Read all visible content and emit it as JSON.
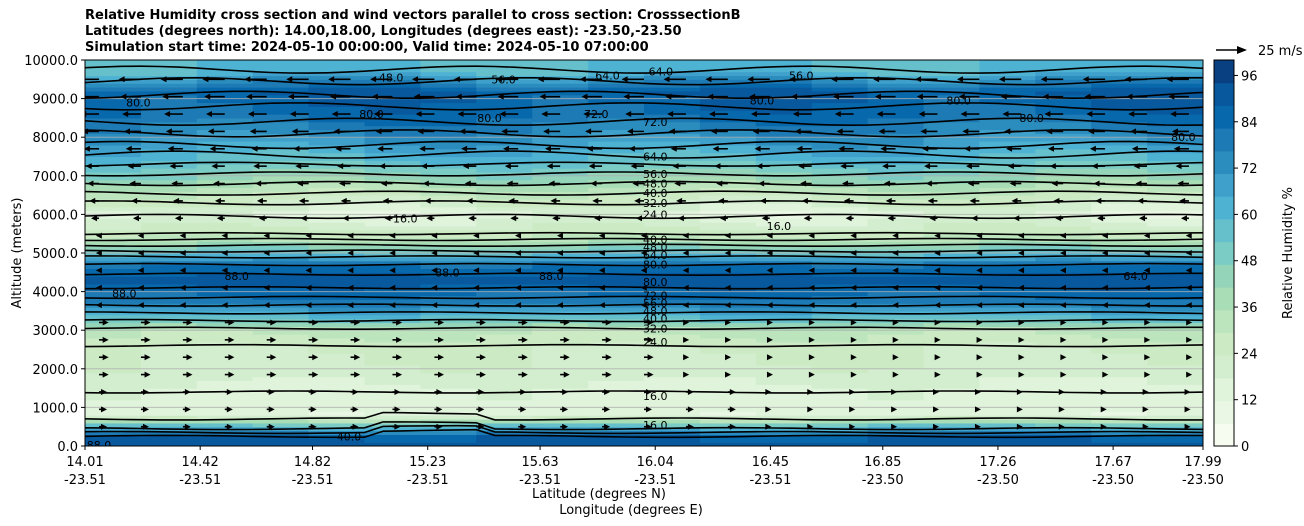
{
  "title_lines": [
    "Relative Humidity cross section and wind vectors parallel to cross section: CrosssectionB",
    "Latitudes (degrees north): 14.00,18.00, Longitudes (degrees east): -23.50,-23.50",
    "Simulation start time: 2024-05-10 00:00:00, Valid time: 2024-05-10 07:00:00"
  ],
  "wind_key_label": "25 m/s",
  "colorbar_label": "Relative Humidity %",
  "chart_data": {
    "type": "heatmap",
    "ylabel": "Altitude (meters)",
    "xlabel_line1": "Latitude (degrees N)",
    "xlabel_line2": "Longitude (degrees E)",
    "ylim": [
      0,
      10000
    ],
    "yticks": [
      "0.0",
      "1000.0",
      "2000.0",
      "3000.0",
      "4000.0",
      "5000.0",
      "6000.0",
      "7000.0",
      "8000.0",
      "9000.0",
      "10000.0"
    ],
    "xticks": [
      {
        "lat": "14.01",
        "lon": "-23.51"
      },
      {
        "lat": "14.42",
        "lon": "-23.51"
      },
      {
        "lat": "14.82",
        "lon": "-23.51"
      },
      {
        "lat": "15.23",
        "lon": "-23.51"
      },
      {
        "lat": "15.63",
        "lon": "-23.51"
      },
      {
        "lat": "16.04",
        "lon": "-23.51"
      },
      {
        "lat": "16.45",
        "lon": "-23.51"
      },
      {
        "lat": "16.85",
        "lon": "-23.50"
      },
      {
        "lat": "17.26",
        "lon": "-23.50"
      },
      {
        "lat": "17.67",
        "lon": "-23.50"
      },
      {
        "lat": "17.99",
        "lon": "-23.50"
      }
    ],
    "colorbar": {
      "range": [
        0,
        100
      ],
      "ticks": [
        "0",
        "12",
        "24",
        "36",
        "48",
        "60",
        "72",
        "84",
        "96"
      ],
      "colors": [
        "#f7fcf0",
        "#eaf7e4",
        "#e0f3db",
        "#d3eece",
        "#ccebc5",
        "#bce5be",
        "#a8ddb5",
        "#94d4b9",
        "#7bccc4",
        "#66c0cb",
        "#4eb3d3",
        "#3fa1cb",
        "#2b8cbe",
        "#1d7ab4",
        "#0868ac",
        "#08589e",
        "#084081"
      ]
    },
    "rh_profile": [
      {
        "alt": 0,
        "rh": 92
      },
      {
        "alt": 250,
        "rh": 88
      },
      {
        "alt": 500,
        "rh": 60
      },
      {
        "alt": 800,
        "rh": 14
      },
      {
        "alt": 1500,
        "rh": 16
      },
      {
        "alt": 2000,
        "rh": 22
      },
      {
        "alt": 2600,
        "rh": 25
      },
      {
        "alt": 3000,
        "rh": 32
      },
      {
        "alt": 3300,
        "rh": 55
      },
      {
        "alt": 3700,
        "rh": 78
      },
      {
        "alt": 4300,
        "rh": 92
      },
      {
        "alt": 4700,
        "rh": 82
      },
      {
        "alt": 5000,
        "rh": 55
      },
      {
        "alt": 5400,
        "rh": 30
      },
      {
        "alt": 6000,
        "rh": 14
      },
      {
        "alt": 6500,
        "rh": 28
      },
      {
        "alt": 7000,
        "rh": 45
      },
      {
        "alt": 7500,
        "rh": 60
      },
      {
        "alt": 8000,
        "rh": 72
      },
      {
        "alt": 8600,
        "rh": 84
      },
      {
        "alt": 9200,
        "rh": 88
      },
      {
        "alt": 9700,
        "rh": 60
      },
      {
        "alt": 10000,
        "rh": 58
      }
    ],
    "contour_labels": [
      {
        "label": "16.0",
        "lat": 16.04,
        "alt": 1300
      },
      {
        "label": "24.0",
        "lat": 16.04,
        "alt": 2700
      },
      {
        "label": "32.0",
        "lat": 16.04,
        "alt": 3050
      },
      {
        "label": "40.0",
        "lat": 16.04,
        "alt": 3300
      },
      {
        "label": "48.0",
        "lat": 16.04,
        "alt": 3500
      },
      {
        "label": "56.0",
        "lat": 16.04,
        "alt": 3700
      },
      {
        "label": "72.0",
        "lat": 16.04,
        "alt": 3900
      },
      {
        "label": "80.0",
        "lat": 16.04,
        "alt": 4250
      },
      {
        "label": "80.0",
        "lat": 16.04,
        "alt": 4700
      },
      {
        "label": "64.0",
        "lat": 16.04,
        "alt": 4950
      },
      {
        "label": "48.0",
        "lat": 16.04,
        "alt": 5150
      },
      {
        "label": "40.0",
        "lat": 16.04,
        "alt": 5350
      },
      {
        "label": "24.0",
        "lat": 16.04,
        "alt": 6000
      },
      {
        "label": "32.0",
        "lat": 16.04,
        "alt": 6300
      },
      {
        "label": "40.0",
        "lat": 16.04,
        "alt": 6550
      },
      {
        "label": "48.0",
        "lat": 16.04,
        "alt": 6800
      },
      {
        "label": "56.0",
        "lat": 16.04,
        "alt": 7050
      },
      {
        "label": "64.0",
        "lat": 16.04,
        "alt": 7500
      },
      {
        "label": "72.0",
        "lat": 16.04,
        "alt": 8400
      },
      {
        "label": "88.0",
        "lat": 14.55,
        "alt": 4400
      },
      {
        "label": "88.0",
        "lat": 15.3,
        "alt": 4500
      },
      {
        "label": "88.0",
        "lat": 15.67,
        "alt": 4400
      },
      {
        "label": "88.0",
        "lat": 14.15,
        "alt": 3950
      },
      {
        "label": "64.0",
        "lat": 17.75,
        "alt": 4400
      },
      {
        "label": "16.0",
        "lat": 15.15,
        "alt": 5900
      },
      {
        "label": "16.0",
        "lat": 16.48,
        "alt": 5700
      },
      {
        "label": "80.0",
        "lat": 14.2,
        "alt": 8900
      },
      {
        "label": "80.0",
        "lat": 15.03,
        "alt": 8600
      },
      {
        "label": "80.0",
        "lat": 15.45,
        "alt": 8500
      },
      {
        "label": "72.0",
        "lat": 15.83,
        "alt": 8600
      },
      {
        "label": "80.0",
        "lat": 16.42,
        "alt": 8950
      },
      {
        "label": "80.0",
        "lat": 17.12,
        "alt": 8950
      },
      {
        "label": "80.0",
        "lat": 17.38,
        "alt": 8500
      },
      {
        "label": "80.0",
        "lat": 17.92,
        "alt": 8000
      },
      {
        "label": "64.0",
        "lat": 16.06,
        "alt": 9700
      },
      {
        "label": "56.0",
        "lat": 16.56,
        "alt": 9600
      },
      {
        "label": "48.0",
        "lat": 15.1,
        "alt": 9550
      },
      {
        "label": "56.0",
        "lat": 15.5,
        "alt": 9500
      },
      {
        "label": "64.0",
        "lat": 15.87,
        "alt": 9600
      },
      {
        "label": "88.0",
        "lat": 14.06,
        "alt": 20
      },
      {
        "label": "40.0",
        "lat": 14.95,
        "alt": 250
      },
      {
        "label": "16.0",
        "lat": 16.04,
        "alt": 550
      }
    ],
    "wind_vectors_description": "rows of arrows parallel to cross section; westward (pointing left) above ~5500 m, eastward (pointing right) near 2000-3000 m on left half"
  }
}
